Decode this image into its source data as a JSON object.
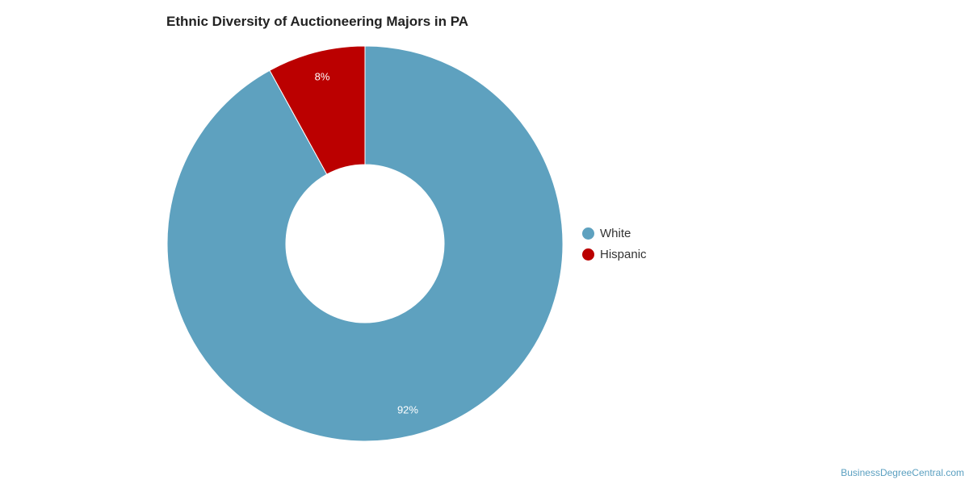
{
  "chart_data": {
    "type": "pie",
    "title": "Ethnic Diversity of Auctioneering Majors in PA",
    "donut": true,
    "legend_position": "right",
    "slices": [
      {
        "label": "White",
        "value": 92,
        "display": "92%",
        "color": "#5ea1bf"
      },
      {
        "label": "Hispanic",
        "value": 8,
        "display": "8%",
        "color": "#bb0000"
      }
    ]
  },
  "source": "BusinessDegreeCentral.com"
}
